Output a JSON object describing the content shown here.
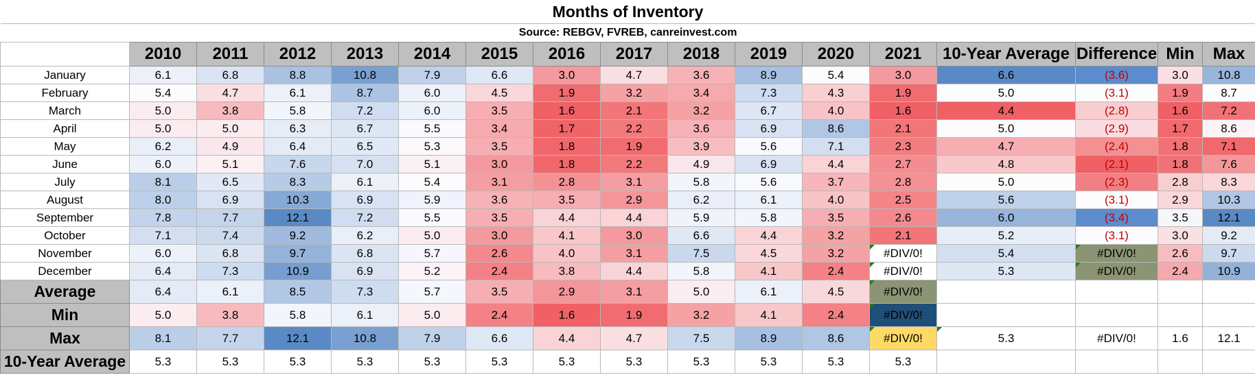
{
  "title": "Months of Inventory",
  "source": "Source: REBGV, FVREB, canreinvest.com",
  "headers": [
    "2010",
    "2011",
    "2012",
    "2013",
    "2014",
    "2015",
    "2016",
    "2017",
    "2018",
    "2019",
    "2020",
    "2021",
    "10-Year Average",
    "Difference",
    "Min",
    "Max"
  ],
  "months": [
    {
      "label": "January",
      "values": [
        "6.1",
        "6.8",
        "8.8",
        "10.8",
        "7.9",
        "6.6",
        "3.0",
        "4.7",
        "3.6",
        "8.9",
        "5.4",
        "3.0",
        "6.6",
        "(3.6)",
        "3.0",
        "10.8"
      ]
    },
    {
      "label": "February",
      "values": [
        "5.4",
        "4.7",
        "6.1",
        "8.7",
        "6.0",
        "4.5",
        "1.9",
        "3.2",
        "3.4",
        "7.3",
        "4.3",
        "1.9",
        "5.0",
        "(3.1)",
        "1.9",
        "8.7"
      ]
    },
    {
      "label": "March",
      "values": [
        "5.0",
        "3.8",
        "5.8",
        "7.2",
        "6.0",
        "3.5",
        "1.6",
        "2.1",
        "3.2",
        "6.7",
        "4.0",
        "1.6",
        "4.4",
        "(2.8)",
        "1.6",
        "7.2"
      ]
    },
    {
      "label": "April",
      "values": [
        "5.0",
        "5.0",
        "6.3",
        "6.7",
        "5.5",
        "3.4",
        "1.7",
        "2.2",
        "3.6",
        "6.9",
        "8.6",
        "2.1",
        "5.0",
        "(2.9)",
        "1.7",
        "8.6"
      ]
    },
    {
      "label": "May",
      "values": [
        "6.2",
        "4.9",
        "6.4",
        "6.5",
        "5.3",
        "3.5",
        "1.8",
        "1.9",
        "3.9",
        "5.6",
        "7.1",
        "2.3",
        "4.7",
        "(2.4)",
        "1.8",
        "7.1"
      ]
    },
    {
      "label": "June",
      "values": [
        "6.0",
        "5.1",
        "7.6",
        "7.0",
        "5.1",
        "3.0",
        "1.8",
        "2.2",
        "4.9",
        "6.9",
        "4.4",
        "2.7",
        "4.8",
        "(2.1)",
        "1.8",
        "7.6"
      ]
    },
    {
      "label": "July",
      "values": [
        "8.1",
        "6.5",
        "8.3",
        "6.1",
        "5.4",
        "3.1",
        "2.8",
        "3.1",
        "5.8",
        "5.6",
        "3.7",
        "2.8",
        "5.0",
        "(2.3)",
        "2.8",
        "8.3"
      ]
    },
    {
      "label": "August",
      "values": [
        "8.0",
        "6.9",
        "10.3",
        "6.9",
        "5.9",
        "3.6",
        "3.5",
        "2.9",
        "6.2",
        "6.1",
        "4.0",
        "2.5",
        "5.6",
        "(3.1)",
        "2.9",
        "10.3"
      ]
    },
    {
      "label": "September",
      "values": [
        "7.8",
        "7.7",
        "12.1",
        "7.2",
        "5.5",
        "3.5",
        "4.4",
        "4.4",
        "5.9",
        "5.8",
        "3.5",
        "2.6",
        "6.0",
        "(3.4)",
        "3.5",
        "12.1"
      ]
    },
    {
      "label": "October",
      "values": [
        "7.1",
        "7.4",
        "9.2",
        "6.2",
        "5.0",
        "3.0",
        "4.1",
        "3.0",
        "6.6",
        "4.4",
        "3.2",
        "2.1",
        "5.2",
        "(3.1)",
        "3.0",
        "9.2"
      ]
    },
    {
      "label": "November",
      "values": [
        "6.0",
        "6.8",
        "9.7",
        "6.8",
        "5.7",
        "2.6",
        "4.0",
        "3.1",
        "7.5",
        "4.5",
        "3.2",
        "#DIV/0!",
        "5.4",
        "#DIV/0!",
        "2.6",
        "9.7"
      ]
    },
    {
      "label": "December",
      "values": [
        "6.4",
        "7.3",
        "10.9",
        "6.9",
        "5.2",
        "2.4",
        "3.8",
        "4.4",
        "5.8",
        "4.1",
        "2.4",
        "#DIV/0!",
        "5.3",
        "#DIV/0!",
        "2.4",
        "10.9"
      ]
    }
  ],
  "summary": [
    {
      "label": "Average",
      "values": [
        "6.4",
        "6.1",
        "8.5",
        "7.3",
        "5.7",
        "3.5",
        "2.9",
        "3.1",
        "5.0",
        "6.1",
        "4.5",
        "#DIV/0!",
        "",
        "",
        "",
        ""
      ]
    },
    {
      "label": "Min",
      "values": [
        "5.0",
        "3.8",
        "5.8",
        "6.1",
        "5.0",
        "2.4",
        "1.6",
        "1.9",
        "3.2",
        "4.1",
        "2.4",
        "#DIV/0!",
        "",
        "",
        "",
        ""
      ]
    },
    {
      "label": "Max",
      "values": [
        "8.1",
        "7.7",
        "12.1",
        "10.8",
        "7.9",
        "6.6",
        "4.4",
        "4.7",
        "7.5",
        "8.9",
        "8.6",
        "#DIV/0!",
        "5.3",
        "#DIV/0!",
        "1.6",
        "12.1"
      ]
    },
    {
      "label": "10-Year Average",
      "values": [
        "5.3",
        "5.3",
        "5.3",
        "5.3",
        "5.3",
        "5.3",
        "5.3",
        "5.3",
        "5.3",
        "5.3",
        "5.3",
        "5.3",
        "",
        "",
        "",
        ""
      ]
    }
  ],
  "colors": {
    "header_gray": "#bfbfbf",
    "div_olive": "#8b9473",
    "div_navy": "#1f4e79",
    "div_yellow": "#ffd966",
    "negative_text": "#c00000"
  }
}
